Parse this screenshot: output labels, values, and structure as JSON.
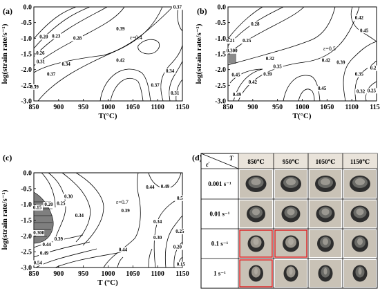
{
  "chart_data": [
    {
      "type": "contour",
      "panel": "(a)",
      "xlabel": "T(°C)",
      "ylabel": "log(strain rate/s⁻¹)",
      "xlim": [
        850,
        1150
      ],
      "ylim": [
        -3.0,
        0.0
      ],
      "xticks": [
        "850",
        "900",
        "950",
        "1000",
        "1050",
        "1100",
        "1150"
      ],
      "yticks": [
        "0.0",
        "-0.5",
        "-1.0",
        "-1.5",
        "-2.0",
        "-2.5",
        "-3.0"
      ],
      "annotation": "ε=0.4",
      "contour_labels": [
        {
          "text": "0.37",
          "x": 1140,
          "y": -0.05
        },
        {
          "text": "0.39",
          "x": 1025,
          "y": -0.75
        },
        {
          "text": "0.20",
          "x": 870,
          "y": -1.0
        },
        {
          "text": "0.23",
          "x": 895,
          "y": -0.98
        },
        {
          "text": "0.28",
          "x": 938,
          "y": -1.05
        },
        {
          "text": "0.26",
          "x": 863,
          "y": -1.52
        },
        {
          "text": "0.31",
          "x": 864,
          "y": -1.8
        },
        {
          "text": "0.34",
          "x": 915,
          "y": -1.88
        },
        {
          "text": "0.37",
          "x": 885,
          "y": -2.2
        },
        {
          "text": "0.42",
          "x": 1025,
          "y": -1.75
        },
        {
          "text": "0.34",
          "x": 1125,
          "y": -2.1
        },
        {
          "text": "0.37",
          "x": 1095,
          "y": -2.55
        },
        {
          "text": "0.31",
          "x": 1135,
          "y": -2.8
        },
        {
          "text": "0.39",
          "x": 851,
          "y": -2.6
        }
      ]
    },
    {
      "type": "contour",
      "panel": "(b)",
      "xlabel": "T(°C)",
      "ylabel": "log(strain rate/s⁻¹)",
      "xlim": [
        850,
        1150
      ],
      "ylim": [
        -3.0,
        0.0
      ],
      "xticks": [
        "850",
        "900",
        "950",
        "1000",
        "1050",
        "1100",
        "1150"
      ],
      "yticks": [
        "0.0",
        "-0.5",
        "-1.0",
        "-1.5",
        "-2.0",
        "-2.5",
        "-3.0"
      ],
      "annotation": "ε=0.5",
      "contour_labels": [
        {
          "text": "0.42",
          "x": 1115,
          "y": -0.4
        },
        {
          "text": "0.45",
          "x": 1125,
          "y": -0.8
        },
        {
          "text": "0.28",
          "x": 905,
          "y": -0.6
        },
        {
          "text": "0.21",
          "x": 855,
          "y": -1.13
        },
        {
          "text": "0.25",
          "x": 888,
          "y": -1.13
        },
        {
          "text": "0.300",
          "x": 858,
          "y": -1.45
        },
        {
          "text": "0.32",
          "x": 935,
          "y": -1.7
        },
        {
          "text": "0.35",
          "x": 950,
          "y": -1.95
        },
        {
          "text": "0.39",
          "x": 930,
          "y": -2.2
        },
        {
          "text": "0.42",
          "x": 900,
          "y": -2.45
        },
        {
          "text": "0.45",
          "x": 866,
          "y": -2.22
        },
        {
          "text": "0.49",
          "x": 868,
          "y": -2.85
        },
        {
          "text": "0.42",
          "x": 1048,
          "y": -1.75
        },
        {
          "text": "0.39",
          "x": 1078,
          "y": -1.82
        },
        {
          "text": "0.45",
          "x": 1040,
          "y": -2.65
        },
        {
          "text": "0.35",
          "x": 1115,
          "y": -2.2
        },
        {
          "text": "0.32",
          "x": 1118,
          "y": -2.75
        },
        {
          "text": "0.25",
          "x": 1140,
          "y": -2.72
        },
        {
          "text": "0.2",
          "x": 1143,
          "y": -2.0
        }
      ]
    },
    {
      "type": "contour",
      "panel": "(c)",
      "xlabel": "T (°C)",
      "ylabel": "log(strain rate/s⁻¹)",
      "xlim": [
        850,
        1150
      ],
      "ylim": [
        -3.0,
        0.0
      ],
      "xticks": [
        "850",
        "900",
        "950",
        "1000",
        "1050",
        "1100",
        "1150"
      ],
      "yticks": [
        "0.0",
        "-0.5",
        "-1.0",
        "-1.5",
        "-2.0",
        "-2.5",
        "-3.0"
      ],
      "annotation": "ε=0.7",
      "contour_labels": [
        {
          "text": "0.44",
          "x": 1085,
          "y": -0.5
        },
        {
          "text": "0.49",
          "x": 1115,
          "y": -0.48
        },
        {
          "text": "0.5",
          "x": 1145,
          "y": -0.85
        },
        {
          "text": "0.30",
          "x": 920,
          "y": -0.8
        },
        {
          "text": "0.20",
          "x": 880,
          "y": -1.05
        },
        {
          "text": "0.25",
          "x": 905,
          "y": -1.02
        },
        {
          "text": "0.34",
          "x": 942,
          "y": -1.4
        },
        {
          "text": "0.15",
          "x": 857,
          "y": -1.15
        },
        {
          "text": "0.39",
          "x": 1035,
          "y": -1.25
        },
        {
          "text": "0.34",
          "x": 1100,
          "y": -1.6
        },
        {
          "text": "0.30",
          "x": 1100,
          "y": -2.1
        },
        {
          "text": "0.25",
          "x": 1145,
          "y": -1.9
        },
        {
          "text": "0.20",
          "x": 1140,
          "y": -2.4
        },
        {
          "text": "0.15",
          "x": 1147,
          "y": -2.95
        },
        {
          "text": "0.300",
          "x": 860,
          "y": -1.95
        },
        {
          "text": "0.39",
          "x": 900,
          "y": -2.15
        },
        {
          "text": "0.44",
          "x": 876,
          "y": -2.32
        },
        {
          "text": "0.49",
          "x": 871,
          "y": -2.6
        },
        {
          "text": "0.54",
          "x": 858,
          "y": -2.9
        },
        {
          "text": "0.44",
          "x": 1030,
          "y": -2.48
        }
      ]
    }
  ],
  "panel_d": {
    "label": "(d)",
    "corner_rate_symbol": "ε̇",
    "corner_temp_symbol": "T",
    "temperatures": [
      "850℃",
      "950℃",
      "1050℃",
      "1150℃"
    ],
    "strain_rates": [
      "0.001 s⁻¹",
      "0.01 s⁻¹",
      "0.1 s⁻¹",
      "1 s⁻¹"
    ],
    "cracked_cells": [
      [
        2,
        0
      ],
      [
        2,
        1
      ],
      [
        3,
        0
      ]
    ]
  },
  "colors": {
    "unstable_region": "#7f7f7f",
    "highlight_border": "#e02020",
    "photo_bg": "#c9c2b6",
    "table_header": "#e9e3da"
  }
}
